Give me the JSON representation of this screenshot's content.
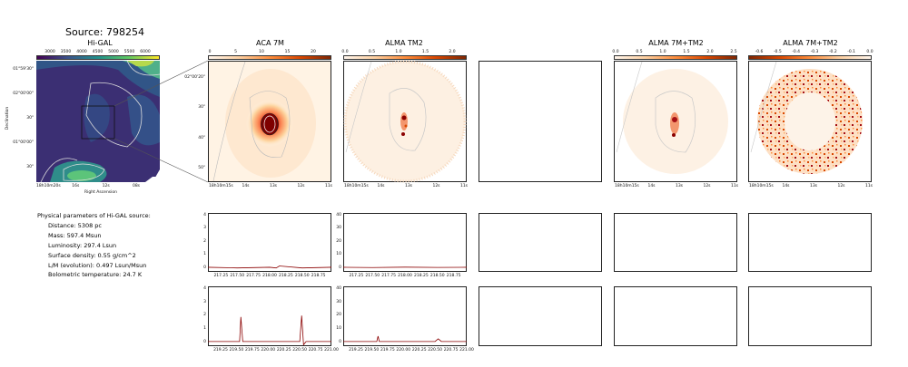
{
  "header": {
    "source_title": "Source: 798254"
  },
  "panels": {
    "higal": {
      "title": "Hi-GAL",
      "colorbar_ticks": [
        "3000",
        "3500",
        "4000",
        "4500",
        "5000",
        "5500",
        "6000"
      ],
      "y_ticks": [
        "01°59'30\"",
        "02°00'00\"",
        "30\"",
        "01°00'00\"",
        "30\""
      ],
      "x_ticks": [
        "18h10m20s",
        "16s",
        "12s",
        "08s"
      ],
      "ylabel": "Declination",
      "xlabel": "Right Ascension"
    },
    "aca": {
      "title": "ACA 7M",
      "colorbar_ticks": [
        "0",
        "5",
        "10",
        "15",
        "20"
      ],
      "y_ticks": [
        "02°00'20\"",
        "30\"",
        "40\"",
        "50\""
      ],
      "x_ticks": [
        "18h10m15s",
        "14s",
        "13s",
        "12s",
        "11s"
      ]
    },
    "tm2": {
      "title": "ALMA TM2",
      "colorbar_ticks": [
        "0.0",
        "0.5",
        "1.0",
        "1.5",
        "2.0"
      ],
      "x_ticks": [
        "18h10m15s",
        "14s",
        "13s",
        "12s",
        "11s"
      ]
    },
    "combo": {
      "title": "ALMA 7M+TM2",
      "colorbar_ticks": [
        "0.0",
        "0.5",
        "1.0",
        "1.5",
        "2.0",
        "2.5"
      ],
      "x_ticks": [
        "18h10m15s",
        "14s",
        "13s",
        "12s",
        "11s"
      ]
    },
    "combo_res": {
      "title": "ALMA 7M+TM2",
      "colorbar_ticks": [
        "-0.6",
        "-0.5",
        "-0.4",
        "-0.3",
        "-0.2",
        "-0.1",
        "0.0"
      ],
      "x_ticks": [
        "18h10m15s",
        "14s",
        "13s",
        "12s",
        "11s"
      ]
    }
  },
  "params": {
    "heading": "Physical parameters of Hi-GAL source:",
    "lines": [
      "Distance: 5308 pc",
      "Mass: 597.4 Msun",
      "Luminosity: 297.4 Lsun",
      "Surface density: 0.55 g/cm^2",
      "L/M (evolution): 0.497 Lsun/Msun",
      "Bolometric temperature: 24.7 K"
    ]
  },
  "colors": {
    "spectrum": "#8b0000",
    "contour": "#c8c8c8"
  },
  "chart_data": [
    {
      "type": "line",
      "panel": "spec-aca-row1",
      "x_ticks": [
        "217.25",
        "217.50",
        "217.75",
        "218.00",
        "218.25",
        "218.50",
        "218.75"
      ],
      "y_ticks": [
        "0",
        "1",
        "2",
        "3",
        "4"
      ],
      "xlim": [
        217.05,
        218.95
      ],
      "ylim": [
        -0.3,
        4.2
      ],
      "series": [
        {
          "x": [
            217.05,
            217.5,
            218.0,
            218.1,
            218.15,
            218.5,
            218.95
          ],
          "y": [
            0.05,
            0.0,
            0.05,
            0.0,
            0.15,
            0.0,
            0.05
          ]
        }
      ]
    },
    {
      "type": "line",
      "panel": "spec-tm2-row1",
      "x_ticks": [
        "217.25",
        "217.50",
        "217.75",
        "218.00",
        "218.25",
        "218.50",
        "218.75"
      ],
      "y_ticks": [
        "0",
        "10",
        "20",
        "30",
        "40"
      ],
      "xlim": [
        217.05,
        218.95
      ],
      "ylim": [
        -3,
        42
      ],
      "series": [
        {
          "x": [
            217.05,
            217.5,
            218.0,
            218.5,
            218.95
          ],
          "y": [
            0.5,
            0.3,
            0.6,
            0.4,
            0.5
          ]
        }
      ]
    },
    {
      "type": "line",
      "panel": "spec-aca-row2",
      "x_ticks": [
        "219.25",
        "219.50",
        "219.75",
        "220.00",
        "220.25",
        "220.50",
        "220.75",
        "221.00"
      ],
      "y_ticks": [
        "0",
        "1",
        "2",
        "3",
        "4"
      ],
      "xlim": [
        219.05,
        221.0
      ],
      "ylim": [
        -0.3,
        4.2
      ],
      "series": [
        {
          "x": [
            219.05,
            219.55,
            219.57,
            219.6,
            220.5,
            220.53,
            220.56,
            220.6,
            221.0
          ],
          "y": [
            0.05,
            0.05,
            1.9,
            0.05,
            0.05,
            2.0,
            -0.2,
            0.05,
            0.05
          ]
        }
      ]
    },
    {
      "type": "line",
      "panel": "spec-tm2-row2",
      "x_ticks": [
        "219.25",
        "219.50",
        "219.75",
        "220.00",
        "220.25",
        "220.50",
        "220.75",
        "221.00"
      ],
      "y_ticks": [
        "0",
        "10",
        "20",
        "30",
        "40"
      ],
      "xlim": [
        219.05,
        221.0
      ],
      "ylim": [
        -3,
        42
      ],
      "series": [
        {
          "x": [
            219.05,
            219.58,
            219.6,
            219.62,
            220.5,
            220.55,
            220.6,
            221.0
          ],
          "y": [
            0.5,
            0.5,
            4.5,
            0.5,
            0.5,
            2.5,
            0.5,
            0.5
          ]
        }
      ]
    }
  ]
}
